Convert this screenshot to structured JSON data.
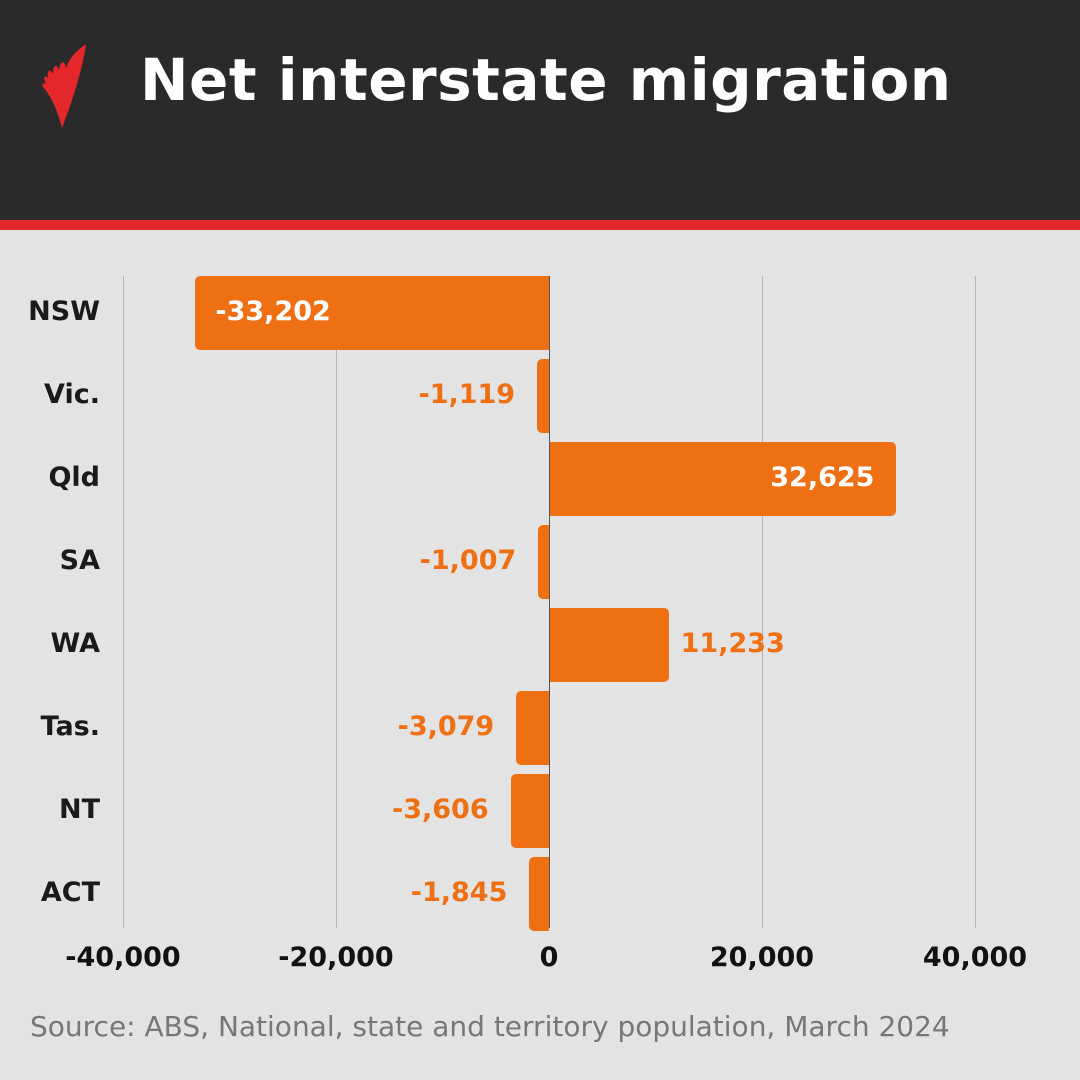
{
  "header": {
    "title": "Net interstate migration",
    "logo": "sbs-logo-icon"
  },
  "colors": {
    "header_bg": "#2a2a2b",
    "accent_stripe": "#e3272a",
    "bar": "#ef7013",
    "background": "#e3e3e4"
  },
  "chart_data": {
    "type": "bar",
    "orientation": "horizontal",
    "title": "Net interstate migration",
    "categories": [
      "NSW",
      "Vic.",
      "Qld",
      "SA",
      "WA",
      "Tas.",
      "NT",
      "ACT"
    ],
    "values": [
      -33202,
      -1119,
      32625,
      -1007,
      11233,
      -3079,
      -3606,
      -1845
    ],
    "value_labels": [
      "-33,202",
      "-1,119",
      "32,625",
      "-1,007",
      "11,233",
      "-3,079",
      "-3,606",
      "-1,845"
    ],
    "xlabel": "",
    "ylabel": "",
    "xlim": [
      -40000,
      40000
    ],
    "x_ticks": [
      -40000,
      -20000,
      0,
      20000,
      40000
    ],
    "x_tick_labels": [
      "-40,000",
      "-20,000",
      "0",
      "20,000",
      "40,000"
    ],
    "grid": true,
    "legend": "none"
  },
  "footer": {
    "source": "Source: ABS, National, state and territory population, March 2024"
  }
}
